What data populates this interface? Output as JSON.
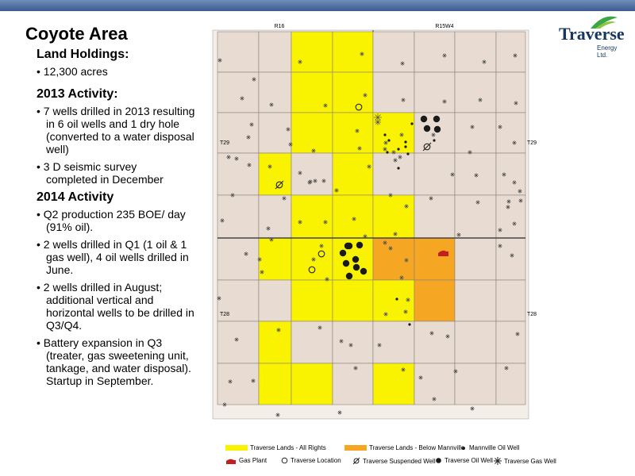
{
  "title": "Coyote Area",
  "logo": {
    "name": "Traverse",
    "sub": "Energy Ltd."
  },
  "sections": [
    {
      "heading": "Land Holdings:",
      "bullets": [
        "12,300 acres"
      ]
    },
    {
      "heading": "2013 Activity:",
      "bullets": [
        "7 wells drilled in 2013 resulting in 6 oil wells and 1 dry hole (converted to a water disposal well)",
        "3 D seismic survey completed in December"
      ]
    },
    {
      "heading": "2014 Activity",
      "bullets": [
        "Q2 production 235 BOE/ day (91% oil).",
        "2 wells drilled in Q1 (1 oil & 1 gas well), 4 oil wells drilled in June.",
        "2 wells drilled in August; additional vertical and horizontal wells to be drilled in Q3/Q4.",
        "Battery expansion in Q3 (treater, gas sweetening unit, tankage, and water disposal). Startup in September."
      ]
    }
  ],
  "map": {
    "ranges": [
      "R16",
      "R15W4"
    ],
    "townships": [
      "T29",
      "T28"
    ],
    "colors": {
      "land": "#e8dcd2",
      "all_rights": "#f9f200",
      "below_mannville": "#f5a623",
      "oil_well": "#1a1a1a",
      "gas_plant": "#c41d1d"
    },
    "all_rights_sections": [
      [
        2,
        0
      ],
      [
        3,
        0
      ],
      [
        2,
        1
      ],
      [
        3,
        1
      ],
      [
        2,
        2
      ],
      [
        3,
        2
      ],
      [
        4,
        2
      ],
      [
        1,
        3
      ],
      [
        3,
        3
      ],
      [
        2,
        4
      ],
      [
        3,
        4
      ],
      [
        4,
        4
      ],
      [
        1,
        5
      ],
      [
        2,
        5
      ],
      [
        3,
        5
      ],
      [
        4,
        5
      ],
      [
        2,
        6
      ],
      [
        3,
        6
      ],
      [
        4,
        6
      ],
      [
        1,
        7
      ],
      [
        1,
        8
      ],
      [
        2,
        8
      ],
      [
        4,
        8
      ]
    ],
    "below_mannville_sections": [
      [
        4,
        5
      ],
      [
        5,
        5
      ],
      [
        5,
        6
      ]
    ]
  },
  "legend": [
    {
      "key": "all_rights",
      "label": "Traverse Lands - All Rights"
    },
    {
      "key": "below_mannville",
      "label": "Traverse Lands - Below Mannville"
    },
    {
      "key": "mannville_oil",
      "label": "Mannville Oil Well"
    },
    {
      "key": "gas_plant",
      "label": "Gas Plant"
    },
    {
      "key": "location",
      "label": "Traverse Location"
    },
    {
      "key": "suspended",
      "label": "Traverse Suspended Well"
    },
    {
      "key": "oil",
      "label": "Traverse Oil Well"
    },
    {
      "key": "gas",
      "label": "Traverse Gas Well"
    }
  ]
}
